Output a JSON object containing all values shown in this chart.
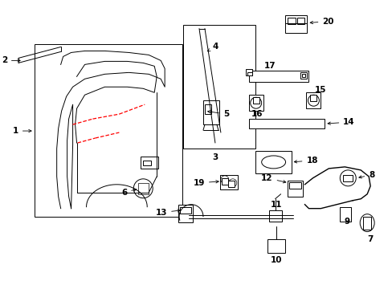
{
  "bg_color": "#ffffff",
  "fig_width": 4.89,
  "fig_height": 3.6,
  "dpi": 100,
  "lw": 0.7,
  "fs": 7.5
}
